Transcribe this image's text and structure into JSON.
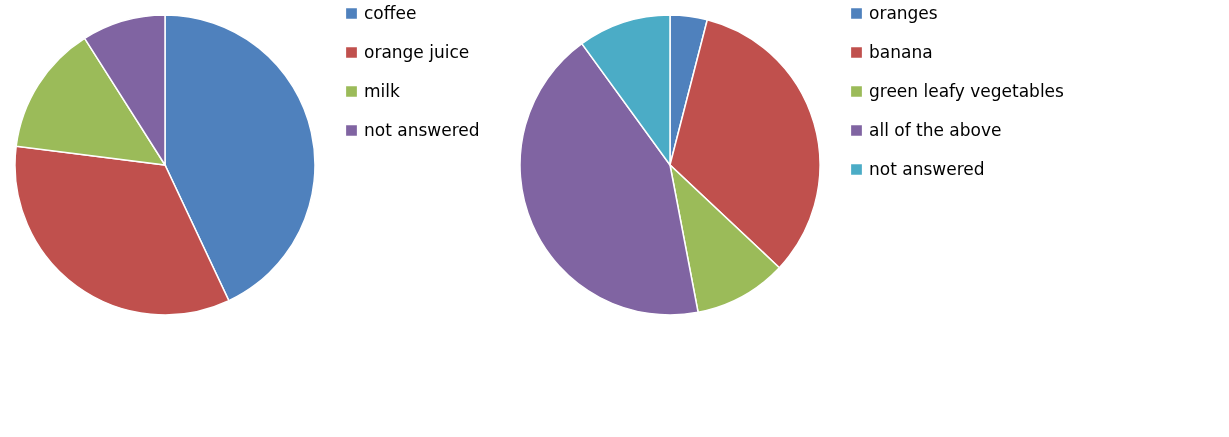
{
  "chart_data": [
    {
      "type": "pie",
      "categories": [
        "coffee",
        "orange juice",
        "milk",
        "not answered"
      ],
      "values": [
        43,
        34,
        14,
        9
      ],
      "colors": [
        "#4f81bd",
        "#c0504d",
        "#9bbb59",
        "#8064a2"
      ],
      "legend": "right"
    },
    {
      "type": "pie",
      "categories": [
        "oranges",
        "banana",
        "green leafy vegetables",
        "all of the above",
        "not answered"
      ],
      "values": [
        4,
        33,
        10,
        43,
        10
      ],
      "colors": [
        "#4f81bd",
        "#c0504d",
        "#9bbb59",
        "#8064a2",
        "#4bacc6"
      ],
      "legend": "right"
    }
  ]
}
